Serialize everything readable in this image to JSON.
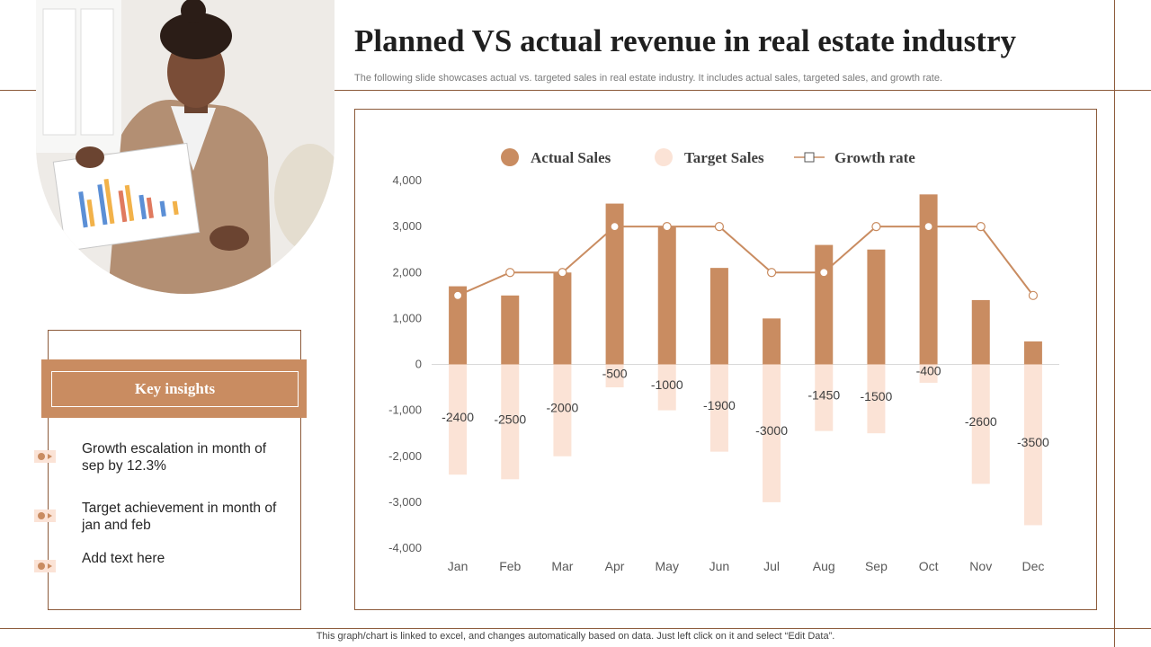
{
  "page": {
    "title": "Planned VS actual revenue in real estate industry",
    "subtitle": "The following slide showcases actual vs. targeted sales in real estate industry. It includes actual sales, targeted sales, and growth rate.",
    "footer": "This graph/chart is linked to excel,  and changes automatically based on data. Just left click on it and select “Edit Data”."
  },
  "insights": {
    "header": "Key insights",
    "items": [
      {
        "text": "Growth escalation in month of sep by 12.3%"
      },
      {
        "text": "Target achievement in month of jan and feb"
      },
      {
        "text": "Add text here"
      }
    ]
  },
  "colors": {
    "actual": "#c98c61",
    "target": "#fbe3d6",
    "growth": "#c98c61",
    "border": "#8c5a3a"
  },
  "chart_data": {
    "type": "bar",
    "categories": [
      "Jan",
      "Feb",
      "Mar",
      "Apr",
      "May",
      "Jun",
      "Jul",
      "Aug",
      "Sep",
      "Oct",
      "Nov",
      "Dec"
    ],
    "series": [
      {
        "name": "Actual Sales",
        "type": "bar",
        "values": [
          1700,
          1500,
          2000,
          3500,
          3000,
          2100,
          1000,
          2600,
          2500,
          3700,
          1400,
          500
        ]
      },
      {
        "name": "Target Sales",
        "type": "bar",
        "values": [
          -2400,
          -2500,
          -2000,
          -500,
          -1000,
          -1900,
          -3000,
          -1450,
          -1500,
          -400,
          -2600,
          -3500
        ]
      },
      {
        "name": "Growth rate",
        "type": "line",
        "values": [
          1500,
          2000,
          2000,
          3000,
          3000,
          3000,
          2000,
          2000,
          3000,
          3000,
          3000,
          1500
        ]
      }
    ],
    "target_labels": [
      "-2400",
      "-2500",
      "-2000",
      "-500",
      "-1000",
      "-1900",
      "-3000",
      "-1450",
      "-1500",
      "-400",
      "-2600",
      "-3500"
    ],
    "ylim": [
      -4000,
      4000
    ],
    "yticks": [
      -4000,
      -3000,
      -2000,
      -1000,
      0,
      1000,
      2000,
      3000,
      4000
    ],
    "ytick_labels": [
      "-4,000",
      "-3,000",
      "-2,000",
      "-1,000",
      "0",
      "1,000",
      "2,000",
      "3,000",
      "4,000"
    ],
    "legend": [
      "Actual Sales",
      "Target Sales",
      "Growth rate"
    ],
    "legend_position": "top-center",
    "grid": false
  }
}
